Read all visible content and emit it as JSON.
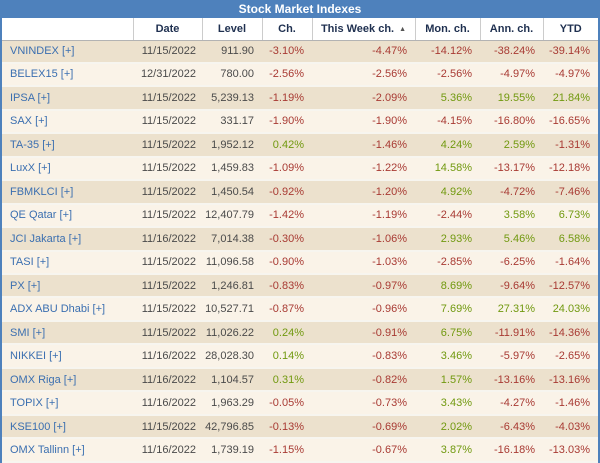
{
  "title": "Stock Market Indexes",
  "colors": {
    "accent": "#4E81BC",
    "header_text": "#1F3050",
    "plain_text": "#4A4A4A",
    "link": "#3B6FB0",
    "negative": "#A83A33",
    "positive": "#71990F",
    "row_dark": "#ECE1CD",
    "row_light": "#FAF3E8"
  },
  "table": {
    "columns": [
      "",
      "Date",
      "Level",
      "Ch.",
      "This Week ch.",
      "Mon. ch.",
      "Ann. ch.",
      "YTD"
    ],
    "sort": {
      "column_index": 4,
      "direction": "ascending",
      "icon": "▲"
    },
    "rows": [
      [
        "VNINDEX [+]",
        "11/15/2022",
        "911.90",
        "-3.10%",
        "-4.47%",
        "-14.12%",
        "-38.24%",
        "-39.14%"
      ],
      [
        "BELEX15 [+]",
        "12/31/2022",
        "780.00",
        "-2.56%",
        "-2.56%",
        "-2.56%",
        "-4.97%",
        "-4.97%"
      ],
      [
        "IPSA [+]",
        "11/15/2022",
        "5,239.13",
        "-1.19%",
        "-2.09%",
        "5.36%",
        "19.55%",
        "21.84%"
      ],
      [
        "SAX [+]",
        "11/15/2022",
        "331.17",
        "-1.90%",
        "-1.90%",
        "-4.15%",
        "-16.80%",
        "-16.65%"
      ],
      [
        "TA-35 [+]",
        "11/15/2022",
        "1,952.12",
        "0.42%",
        "-1.46%",
        "4.24%",
        "2.59%",
        "-1.31%"
      ],
      [
        "LuxX [+]",
        "11/15/2022",
        "1,459.83",
        "-1.09%",
        "-1.22%",
        "14.58%",
        "-13.17%",
        "-12.18%"
      ],
      [
        "FBMKLCI [+]",
        "11/15/2022",
        "1,450.54",
        "-0.92%",
        "-1.20%",
        "4.92%",
        "-4.72%",
        "-7.46%"
      ],
      [
        "QE Qatar [+]",
        "11/15/2022",
        "12,407.79",
        "-1.42%",
        "-1.19%",
        "-2.44%",
        "3.58%",
        "6.73%"
      ],
      [
        "JCI Jakarta [+]",
        "11/16/2022",
        "7,014.38",
        "-0.30%",
        "-1.06%",
        "2.93%",
        "5.46%",
        "6.58%"
      ],
      [
        "TASI [+]",
        "11/15/2022",
        "11,096.58",
        "-0.90%",
        "-1.03%",
        "-2.85%",
        "-6.25%",
        "-1.64%"
      ],
      [
        "PX [+]",
        "11/15/2022",
        "1,246.81",
        "-0.83%",
        "-0.97%",
        "8.69%",
        "-9.64%",
        "-12.57%"
      ],
      [
        "ADX ABU Dhabi [+]",
        "11/15/2022",
        "10,527.71",
        "-0.87%",
        "-0.96%",
        "7.69%",
        "27.31%",
        "24.03%"
      ],
      [
        "SMI [+]",
        "11/15/2022",
        "11,026.22",
        "0.24%",
        "-0.91%",
        "6.75%",
        "-11.91%",
        "-14.36%"
      ],
      [
        "NIKKEI [+]",
        "11/16/2022",
        "28,028.30",
        "0.14%",
        "-0.83%",
        "3.46%",
        "-5.97%",
        "-2.65%"
      ],
      [
        "OMX Riga [+]",
        "11/16/2022",
        "1,104.57",
        "0.31%",
        "-0.82%",
        "1.57%",
        "-13.16%",
        "-13.16%"
      ],
      [
        "TOPIX [+]",
        "11/16/2022",
        "1,963.29",
        "-0.05%",
        "-0.73%",
        "3.43%",
        "-4.27%",
        "-1.46%"
      ],
      [
        "KSE100 [+]",
        "11/15/2022",
        "42,796.85",
        "-0.13%",
        "-0.69%",
        "2.02%",
        "-6.43%",
        "-4.03%"
      ],
      [
        "OMX Tallinn [+]",
        "11/16/2022",
        "1,739.19",
        "-1.15%",
        "-0.67%",
        "3.87%",
        "-16.18%",
        "-13.03%"
      ]
    ]
  }
}
